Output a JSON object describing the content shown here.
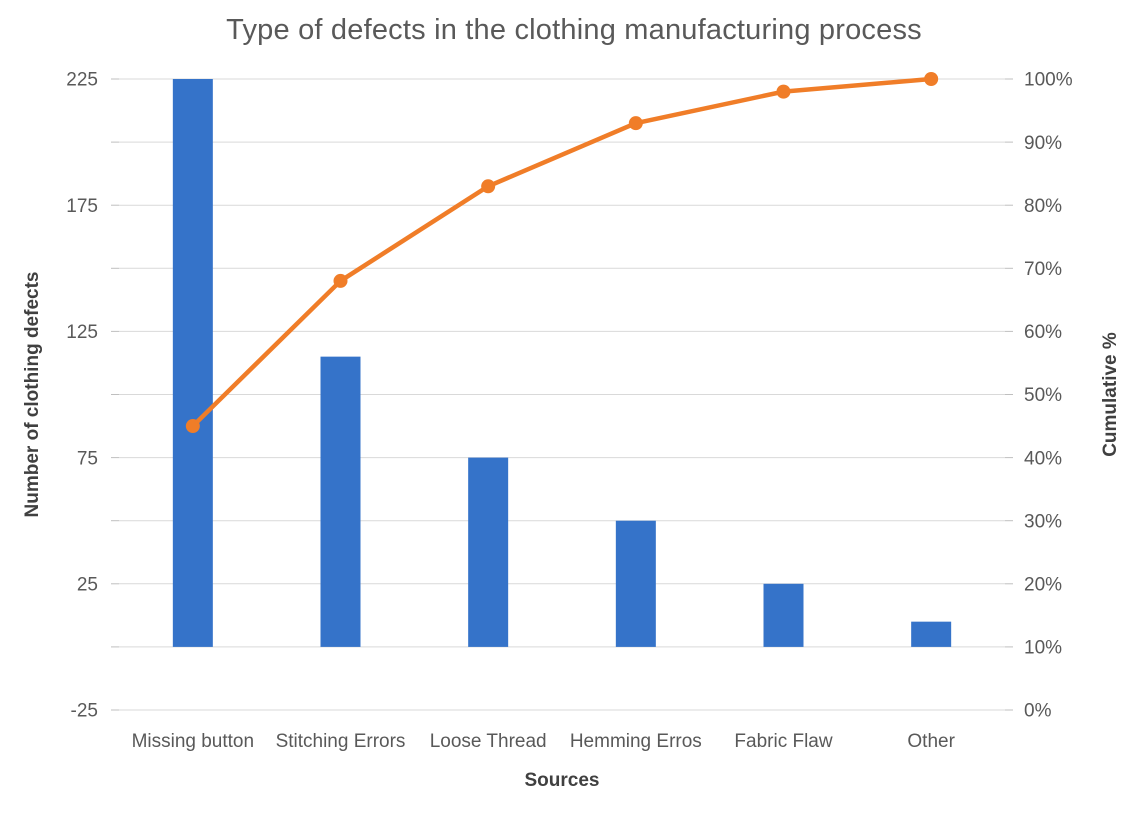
{
  "chart_data": {
    "type": "bar+line pareto",
    "title": "Type of defects in the clothing manufacturing process",
    "categories": [
      "Missing button",
      "Stitching Errors",
      "Loose Thread",
      "Hemming Erros",
      "Fabric Flaw",
      "Other"
    ],
    "series": [
      {
        "name": "Number of clothing defects",
        "type": "bar",
        "axis": "left",
        "values": [
          225,
          115,
          75,
          50,
          25,
          10
        ]
      },
      {
        "name": "Cumulative %",
        "type": "line",
        "axis": "right",
        "values": [
          45,
          68,
          83,
          93,
          98,
          100
        ],
        "unit": "%"
      }
    ],
    "xlabel": "Sources",
    "ylabel_left": "Number of clothing defects",
    "ylabel_right": "Cumulative %",
    "y_left": {
      "min": -25,
      "max": 225,
      "grid_step": 25,
      "tick_labels": [
        225,
        175,
        125,
        75,
        25,
        -25
      ]
    },
    "y_right": {
      "min": 0,
      "max": 100,
      "tick_step": 10,
      "suffix": "%"
    },
    "legend": "none",
    "grid": "horizontal",
    "colors": {
      "bar": "#3573C9",
      "line": "#F07D28",
      "marker": "#F07D28",
      "grid": "#D9D9D9",
      "tick": "#BFBFBF",
      "tick_text": "#595959",
      "axis_title_text": "#404040",
      "title_text": "#595959",
      "background": "#FFFFFF"
    }
  }
}
